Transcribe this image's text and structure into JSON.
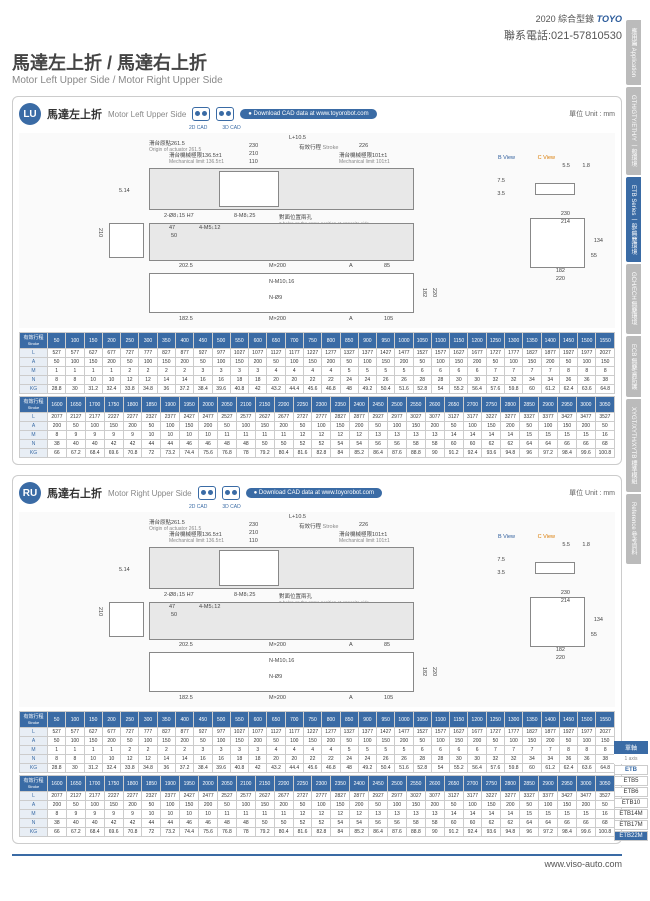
{
  "header": {
    "year": "2020",
    "catalog": "綜合型錄",
    "brand": "TOYO",
    "phone": "聯系電話:021-57810530"
  },
  "title": {
    "cn": "馬達左上折 / 馬達右上折",
    "en": "Motor Left Upper Side / Motor Right Upper Side"
  },
  "sideTabs": [
    "應用篇 Application",
    "GTH/GTY/ETH/Y 一般環境",
    "ETB Series 一般/無塵環境",
    "GCH/ECH 無塵環境",
    "ECB 無塵/高防護",
    "XYGT/XYTH/XYTB 標準模組",
    "Reference 參考資料"
  ],
  "sideActiveIdx": 2,
  "sections": [
    {
      "badge": "LU",
      "cn": "馬達左上折",
      "en": "Motor Left Upper Side"
    },
    {
      "badge": "RU",
      "cn": "馬達右上折",
      "en": "Motor Right Upper Side"
    }
  ],
  "cadLabels": [
    "2D CAD",
    "3D CAD"
  ],
  "dlText": "Download CAD data at www.toyorobot.com",
  "unit": "單位 Unit : mm",
  "dims": {
    "origin": "滑台原點261.5",
    "origin_en": "Origin of actuator 261.5",
    "mech": "滑台機械極限136.5±1",
    "mech_en": "Mechanical limit 136.5±1",
    "stroke": "有效行程",
    "stroke_en": "Stroke",
    "mech2": "滑台機械極限101±1",
    "mech2_en": "Mechanical limit 101±1",
    "L105": "L+10.5",
    "d230": "230",
    "d210": "210",
    "d110": "110",
    "d226": "226",
    "bview": "B View",
    "cview": "C View",
    "d55": "5.5",
    "d18": "1.8",
    "d75": "7.5",
    "d2": "2",
    "d35": "3.5",
    "d514": "5.14",
    "h1": "2-Ø8↓15 H7",
    "h2": "8-M8↓25",
    "holes": "對面位置兩孔",
    "holes_en": "2 holes on the same position at opposite side.",
    "d47": "47",
    "d50": "50",
    "h3": "4-M5↓12",
    "d2025": "202.5",
    "mx200": "M×200",
    "dA": "A",
    "d85": "85",
    "h4": "N-M10↓16",
    "h5": "N-Ø9",
    "d1825": "182.5",
    "d105": "105",
    "d182": "182",
    "d220": "220",
    "d214": "214",
    "d134": "134",
    "d55b": "55"
  },
  "strokeLabel": "有效行程",
  "rowLabels": [
    "L",
    "A",
    "M",
    "N",
    "KG"
  ],
  "strokes1": [
    "50",
    "100",
    "150",
    "200",
    "250",
    "300",
    "350",
    "400",
    "450",
    "500",
    "550",
    "600",
    "650",
    "700",
    "750",
    "800",
    "850",
    "900",
    "950",
    "1000",
    "1050",
    "1100",
    "1150",
    "1200",
    "1250",
    "1300",
    "1350",
    "1400",
    "1450",
    "1500",
    "1550"
  ],
  "lu_t1": [
    [
      "527",
      "577",
      "627",
      "677",
      "727",
      "777",
      "827",
      "877",
      "927",
      "977",
      "1027",
      "1077",
      "1127",
      "1177",
      "1227",
      "1277",
      "1327",
      "1377",
      "1427",
      "1477",
      "1527",
      "1577",
      "1627",
      "1677",
      "1727",
      "1777",
      "1827",
      "1877",
      "1927",
      "1977",
      "2027"
    ],
    [
      "50",
      "100",
      "150",
      "200",
      "50",
      "100",
      "150",
      "200",
      "50",
      "100",
      "150",
      "200",
      "50",
      "100",
      "150",
      "200",
      "50",
      "100",
      "150",
      "200",
      "50",
      "100",
      "150",
      "200",
      "50",
      "100",
      "150",
      "200",
      "50",
      "100",
      "150"
    ],
    [
      "1",
      "1",
      "1",
      "1",
      "2",
      "2",
      "2",
      "2",
      "3",
      "3",
      "3",
      "3",
      "4",
      "4",
      "4",
      "4",
      "5",
      "5",
      "5",
      "5",
      "6",
      "6",
      "6",
      "6",
      "7",
      "7",
      "7",
      "7",
      "8",
      "8",
      "8"
    ],
    [
      "8",
      "8",
      "10",
      "10",
      "12",
      "12",
      "14",
      "14",
      "16",
      "16",
      "18",
      "18",
      "20",
      "20",
      "22",
      "22",
      "24",
      "24",
      "26",
      "26",
      "28",
      "28",
      "30",
      "30",
      "32",
      "32",
      "34",
      "34",
      "36",
      "36",
      "38"
    ],
    [
      "28.8",
      "30",
      "31.2",
      "32.4",
      "33.8",
      "34.8",
      "36",
      "37.2",
      "38.4",
      "39.6",
      "40.8",
      "42",
      "43.2",
      "44.4",
      "45.6",
      "46.8",
      "48",
      "49.2",
      "50.4",
      "51.6",
      "52.8",
      "54",
      "55.2",
      "56.4",
      "57.6",
      "59.8",
      "60",
      "61.2",
      "62.4",
      "63.6",
      "64.8"
    ]
  ],
  "strokes2": [
    "1600",
    "1650",
    "1700",
    "1750",
    "1800",
    "1850",
    "1900",
    "1950",
    "2000",
    "2050",
    "2100",
    "2150",
    "2200",
    "2250",
    "2300",
    "2350",
    "2400",
    "2450",
    "2500",
    "2550",
    "2600",
    "2650",
    "2700",
    "2750",
    "2800",
    "2850",
    "2900",
    "2950",
    "3000",
    "3050"
  ],
  "lu_t2": [
    [
      "2077",
      "2127",
      "2177",
      "2227",
      "2277",
      "2327",
      "2377",
      "2427",
      "2477",
      "2527",
      "2577",
      "2627",
      "2677",
      "2727",
      "2777",
      "2827",
      "2877",
      "2927",
      "2977",
      "3027",
      "3077",
      "3127",
      "3177",
      "3227",
      "3277",
      "3327",
      "3377",
      "3427",
      "3477",
      "3527"
    ],
    [
      "200",
      "50",
      "100",
      "150",
      "200",
      "50",
      "100",
      "150",
      "200",
      "50",
      "100",
      "150",
      "200",
      "50",
      "100",
      "150",
      "200",
      "50",
      "100",
      "150",
      "200",
      "50",
      "100",
      "150",
      "200",
      "50",
      "100",
      "150",
      "200",
      "50"
    ],
    [
      "8",
      "9",
      "9",
      "9",
      "9",
      "10",
      "10",
      "10",
      "10",
      "11",
      "11",
      "11",
      "11",
      "12",
      "12",
      "12",
      "12",
      "13",
      "13",
      "13",
      "13",
      "14",
      "14",
      "14",
      "14",
      "15",
      "15",
      "15",
      "15",
      "16"
    ],
    [
      "38",
      "40",
      "40",
      "42",
      "42",
      "44",
      "44",
      "46",
      "46",
      "48",
      "48",
      "50",
      "50",
      "52",
      "52",
      "54",
      "54",
      "56",
      "56",
      "58",
      "58",
      "60",
      "60",
      "62",
      "62",
      "64",
      "64",
      "66",
      "66",
      "68"
    ],
    [
      "66",
      "67.2",
      "68.4",
      "69.6",
      "70.8",
      "72",
      "73.2",
      "74.4",
      "75.6",
      "76.8",
      "78",
      "79.2",
      "80.4",
      "81.6",
      "82.8",
      "84",
      "85.2",
      "86.4",
      "87.6",
      "88.8",
      "90",
      "91.2",
      "92.4",
      "93.6",
      "94.8",
      "96",
      "97.2",
      "98.4",
      "99.6",
      "100.8"
    ]
  ],
  "models": {
    "head1": "單軸",
    "head2": "1 axis",
    "main": "ETB",
    "list": [
      "ETB5",
      "ETB6",
      "ETB10",
      "ETB14M",
      "ETB17M",
      "ETB22M"
    ],
    "activeIdx": 5
  },
  "footer": "www.viso-auto.com"
}
